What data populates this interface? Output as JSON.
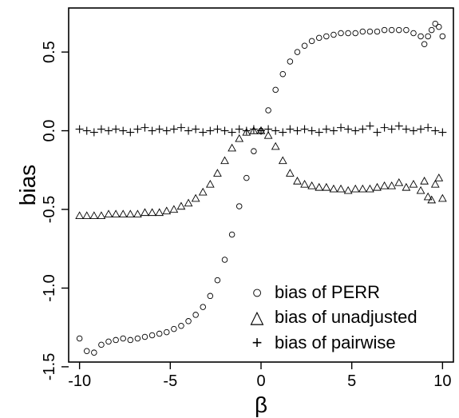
{
  "chart_data": {
    "type": "scatter",
    "xlabel": "β",
    "ylabel": "bias",
    "xlim": [
      -10.6,
      10.6
    ],
    "ylim": [
      -1.47,
      0.78
    ],
    "x_ticks": [
      -10,
      -5,
      0,
      5,
      10
    ],
    "y_ticks": [
      -1.5,
      -1.0,
      -0.5,
      0.0,
      0.5
    ],
    "x_tick_labels": [
      "-10",
      "-5",
      "0",
      "5",
      "10"
    ],
    "y_tick_labels": [
      "-1.5",
      "-1.0",
      "-0.5",
      "0.0",
      "0.5"
    ],
    "grid": false,
    "legend_position": "bottom-right",
    "series": [
      {
        "name": "bias of PERR",
        "marker": "circle",
        "x": [
          -10.0,
          -9.6,
          -9.2,
          -8.8,
          -8.4,
          -8.0,
          -7.6,
          -7.2,
          -6.8,
          -6.4,
          -6.0,
          -5.6,
          -5.2,
          -4.8,
          -4.4,
          -4.0,
          -3.6,
          -3.2,
          -2.8,
          -2.4,
          -2.0,
          -1.6,
          -1.2,
          -0.8,
          -0.4,
          0.0,
          0.4,
          0.8,
          1.2,
          1.6,
          2.0,
          2.4,
          2.8,
          3.2,
          3.6,
          4.0,
          4.4,
          4.8,
          5.2,
          5.6,
          6.0,
          6.4,
          6.8,
          7.2,
          7.6,
          8.0,
          8.4,
          8.8,
          9.0,
          9.2,
          9.4,
          9.6,
          9.8,
          10.0
        ],
        "y": [
          -1.32,
          -1.4,
          -1.41,
          -1.36,
          -1.34,
          -1.33,
          -1.32,
          -1.33,
          -1.32,
          -1.31,
          -1.3,
          -1.29,
          -1.28,
          -1.26,
          -1.24,
          -1.21,
          -1.17,
          -1.12,
          -1.05,
          -0.95,
          -0.82,
          -0.66,
          -0.48,
          -0.3,
          -0.13,
          0.0,
          0.13,
          0.26,
          0.36,
          0.44,
          0.5,
          0.54,
          0.57,
          0.59,
          0.6,
          0.61,
          0.62,
          0.62,
          0.62,
          0.63,
          0.63,
          0.63,
          0.64,
          0.64,
          0.64,
          0.64,
          0.62,
          0.6,
          0.55,
          0.6,
          0.64,
          0.68,
          0.66,
          0.6
        ]
      },
      {
        "name": "bias of unadjusted",
        "marker": "triangle",
        "x": [
          -10.0,
          -9.6,
          -9.2,
          -8.8,
          -8.4,
          -8.0,
          -7.6,
          -7.2,
          -6.8,
          -6.4,
          -6.0,
          -5.6,
          -5.2,
          -4.8,
          -4.4,
          -4.0,
          -3.6,
          -3.2,
          -2.8,
          -2.4,
          -2.0,
          -1.6,
          -1.2,
          -0.8,
          -0.4,
          0.0,
          0.4,
          0.8,
          1.2,
          1.6,
          2.0,
          2.4,
          2.8,
          3.2,
          3.6,
          4.0,
          4.4,
          4.8,
          5.2,
          5.6,
          6.0,
          6.4,
          6.8,
          7.2,
          7.6,
          8.0,
          8.4,
          8.8,
          9.0,
          9.2,
          9.4,
          9.6,
          9.8,
          10.0
        ],
        "y": [
          -0.54,
          -0.54,
          -0.54,
          -0.54,
          -0.53,
          -0.53,
          -0.53,
          -0.53,
          -0.53,
          -0.52,
          -0.52,
          -0.52,
          -0.51,
          -0.5,
          -0.48,
          -0.46,
          -0.43,
          -0.39,
          -0.34,
          -0.27,
          -0.19,
          -0.11,
          -0.05,
          -0.01,
          0.0,
          0.0,
          -0.03,
          -0.1,
          -0.19,
          -0.27,
          -0.32,
          -0.34,
          -0.35,
          -0.36,
          -0.36,
          -0.37,
          -0.37,
          -0.38,
          -0.37,
          -0.37,
          -0.37,
          -0.36,
          -0.35,
          -0.35,
          -0.33,
          -0.36,
          -0.34,
          -0.38,
          -0.32,
          -0.42,
          -0.44,
          -0.34,
          -0.3,
          -0.43
        ]
      },
      {
        "name": "bias of pairwise",
        "marker": "plus",
        "x": [
          -10.0,
          -9.6,
          -9.2,
          -8.8,
          -8.4,
          -8.0,
          -7.6,
          -7.2,
          -6.8,
          -6.4,
          -6.0,
          -5.6,
          -5.2,
          -4.8,
          -4.4,
          -4.0,
          -3.6,
          -3.2,
          -2.8,
          -2.4,
          -2.0,
          -1.6,
          -1.2,
          -0.8,
          -0.4,
          0.0,
          0.4,
          0.8,
          1.2,
          1.6,
          2.0,
          2.4,
          2.8,
          3.2,
          3.6,
          4.0,
          4.4,
          4.8,
          5.2,
          5.6,
          6.0,
          6.4,
          6.8,
          7.2,
          7.6,
          8.0,
          8.4,
          8.8,
          9.2,
          9.6,
          10.0
        ],
        "y": [
          0.01,
          0.0,
          -0.01,
          0.01,
          0.0,
          0.01,
          0.0,
          -0.01,
          0.01,
          0.02,
          0.0,
          0.01,
          0.0,
          0.01,
          0.02,
          0.0,
          0.01,
          -0.01,
          0.0,
          0.01,
          0.0,
          -0.01,
          0.01,
          0.0,
          0.01,
          0.0,
          0.01,
          0.0,
          -0.01,
          0.01,
          0.0,
          0.01,
          0.0,
          -0.01,
          0.01,
          0.0,
          0.02,
          0.01,
          0.0,
          0.01,
          0.03,
          -0.01,
          0.02,
          0.01,
          0.03,
          0.01,
          0.0,
          0.01,
          0.02,
          0.0,
          -0.01
        ]
      }
    ],
    "legend": [
      {
        "symbol": "○",
        "label": "bias of PERR"
      },
      {
        "symbol": "△",
        "label": "bias of unadjusted"
      },
      {
        "symbol": "+",
        "label": "bias of pairwise"
      }
    ]
  }
}
